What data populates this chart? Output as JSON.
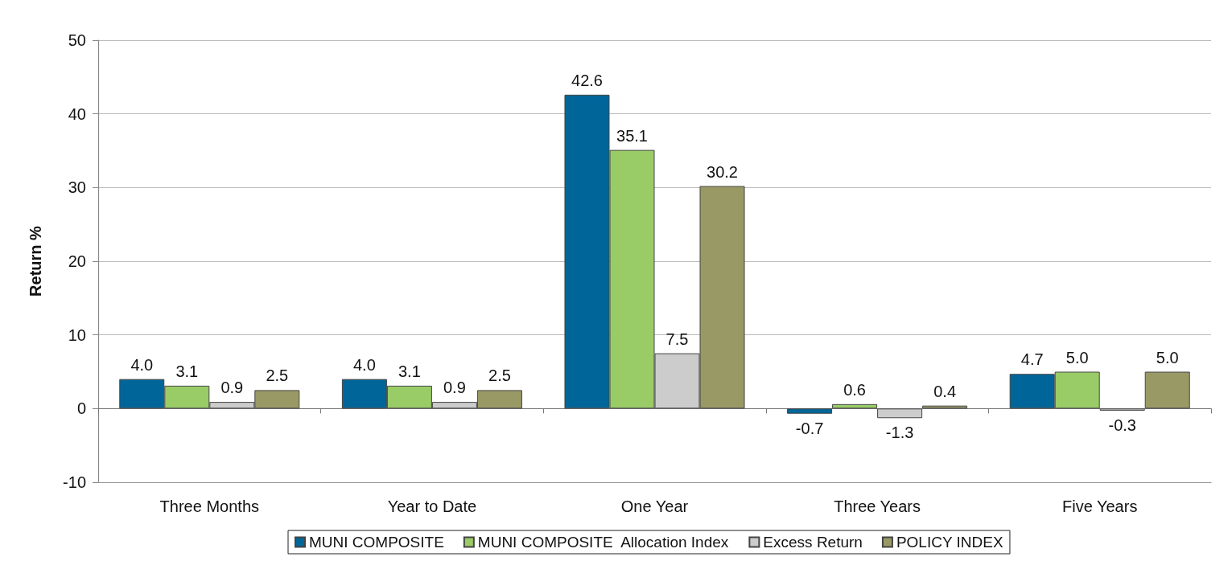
{
  "chart_data": {
    "type": "bar",
    "ylabel": "Return %",
    "categories": [
      "Three Months",
      "Year to Date",
      "One Year",
      "Three Years",
      "Five Years"
    ],
    "series": [
      {
        "name": "MUNI COMPOSITE",
        "color": "#006699",
        "values": [
          4.0,
          4.0,
          42.6,
          -0.7,
          4.7
        ],
        "value_labels": [
          "4.0",
          "4.0",
          "42.6",
          "-0.7",
          "4.7"
        ]
      },
      {
        "name": "MUNI COMPOSITE  Allocation Index",
        "color": "#99cc66",
        "values": [
          3.1,
          3.1,
          35.1,
          0.6,
          5.0
        ],
        "value_labels": [
          "3.1",
          "3.1",
          "35.1",
          "0.6",
          "5.0"
        ]
      },
      {
        "name": "Excess Return",
        "color": "#cccccc",
        "values": [
          0.9,
          0.9,
          7.5,
          -1.3,
          -0.3
        ],
        "value_labels": [
          "0.9",
          "0.9",
          "7.5",
          "-1.3",
          "-0.3"
        ]
      },
      {
        "name": "POLICY INDEX",
        "color": "#999966",
        "values": [
          2.5,
          2.5,
          30.2,
          0.4,
          5.0
        ],
        "value_labels": [
          "2.5",
          "2.5",
          "30.2",
          "0.4",
          "5.0"
        ]
      }
    ],
    "ylim": [
      -10,
      50
    ],
    "yticks": [
      -10,
      0,
      10,
      20,
      30,
      40,
      50
    ],
    "grid": "y",
    "legend": "bottom"
  }
}
